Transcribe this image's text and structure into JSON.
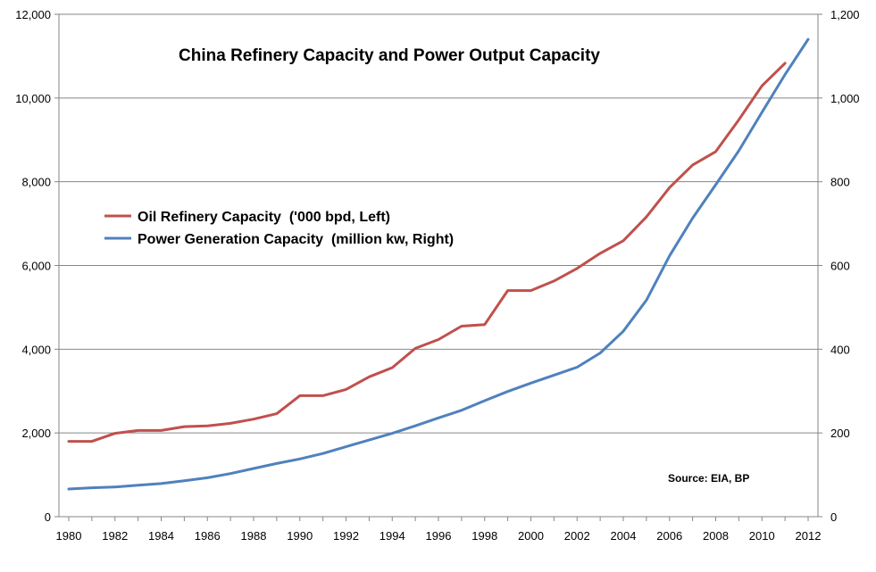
{
  "chart_data": {
    "type": "line",
    "title": "China Refinery Capacity and Power Output Capacity",
    "source": "Source: EIA, BP",
    "x_ticks": [
      "1980",
      "1982",
      "1984",
      "1986",
      "1988",
      "1990",
      "1992",
      "1994",
      "1996",
      "1998",
      "2000",
      "2002",
      "2004",
      "2006",
      "2008",
      "2010",
      "2012"
    ],
    "xlim": [
      1980,
      2012
    ],
    "left_axis": {
      "ylim": [
        0,
        12000
      ],
      "ticks": [
        "0",
        "2,000",
        "4,000",
        "6,000",
        "8,000",
        "10,000",
        "12,000"
      ],
      "tick_values": [
        0,
        2000,
        4000,
        6000,
        8000,
        10000,
        12000
      ]
    },
    "right_axis": {
      "ylim": [
        0,
        1200
      ],
      "ticks": [
        "0",
        "200",
        "400",
        "600",
        "800",
        "1,000",
        "1,200"
      ],
      "tick_values": [
        0,
        200,
        400,
        600,
        800,
        1000,
        1200
      ]
    },
    "grid": true,
    "legend_position": "center-left",
    "series": [
      {
        "name": "Oil Refinery Capacity  ('000 bpd, Left)",
        "axis": "left",
        "color": "#C0504D",
        "x": [
          1980,
          1981,
          1982,
          1983,
          1984,
          1985,
          1986,
          1987,
          1988,
          1989,
          1990,
          1991,
          1992,
          1993,
          1994,
          1995,
          1996,
          1997,
          1998,
          1999,
          2000,
          2001,
          2002,
          2003,
          2004,
          2005,
          2006,
          2007,
          2008,
          2009,
          2010,
          2011
        ],
        "values": [
          1800,
          1800,
          1990,
          2060,
          2060,
          2150,
          2170,
          2230,
          2330,
          2460,
          2890,
          2890,
          3040,
          3340,
          3560,
          4020,
          4230,
          4550,
          4590,
          5400,
          5400,
          5630,
          5930,
          6290,
          6590,
          7160,
          7860,
          8400,
          8720,
          9480,
          10290,
          10830
        ]
      },
      {
        "name": "Power Generation Capacity  (million kw, Right)",
        "axis": "right",
        "color": "#4F81BD",
        "x": [
          1980,
          1981,
          1982,
          1983,
          1984,
          1985,
          1986,
          1987,
          1988,
          1989,
          1990,
          1991,
          1992,
          1993,
          1994,
          1995,
          1996,
          1997,
          1998,
          1999,
          2000,
          2001,
          2002,
          2003,
          2004,
          2005,
          2006,
          2007,
          2008,
          2009,
          2010,
          2011,
          2012
        ],
        "values": [
          66,
          69,
          71,
          75,
          79,
          86,
          93,
          103,
          115,
          127,
          138,
          151,
          167,
          183,
          199,
          217,
          236,
          254,
          277,
          299,
          319,
          338,
          357,
          391,
          443,
          517,
          623,
          713,
          793,
          874,
          966,
          1056,
          1140
        ]
      }
    ]
  }
}
